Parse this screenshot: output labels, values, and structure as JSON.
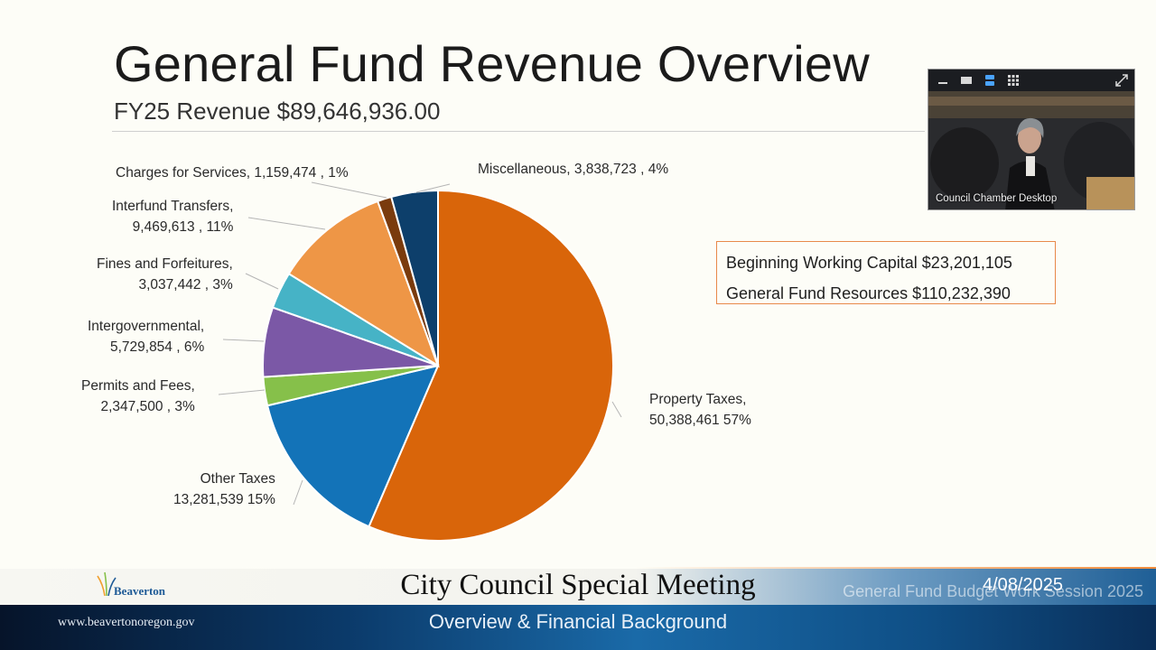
{
  "slide": {
    "title": "General Fund Revenue Overview",
    "subtitle": "FY25 Revenue $89,646,936.00",
    "info_box": {
      "line1": "Beginning Working Capital $23,201,105",
      "line2": "General Fund Resources $110,232,390"
    }
  },
  "chart_data": {
    "type": "pie",
    "slices": [
      {
        "category": "Property Taxes,",
        "value": 50388461,
        "value_label": "50,388,461",
        "percent_label": "57%",
        "color": "#d9650a"
      },
      {
        "category": "Other Taxes",
        "value": 13281539,
        "value_label": "13,281,539",
        "percent_label": "15%",
        "color": "#1373b8"
      },
      {
        "category": "Permits and Fees,",
        "value": 2347500,
        "value_label": "2,347,500",
        "percent_label": "3%",
        "color": "#86c04a"
      },
      {
        "category": "Intergovernmental,",
        "value": 5729854,
        "value_label": "5,729,854",
        "percent_label": "6%",
        "color": "#7b58a6"
      },
      {
        "category": "Fines and Forfeitures,",
        "value": 3037442,
        "value_label": "3,037,442",
        "percent_label": "3%",
        "color": "#46b3c6"
      },
      {
        "category": "Interfund Transfers,",
        "value": 9469613,
        "value_label": "9,469,613",
        "percent_label": "11%",
        "color": "#ee9646"
      },
      {
        "category": "Charges for Services,",
        "value": 1159474,
        "value_label": "1,159,474",
        "percent_label": "1%",
        "color": "#7a3b0d"
      },
      {
        "category": "Miscellaneous,",
        "value": 3838723,
        "value_label": "3,838,723",
        "percent_label": "4%",
        "color": "#0d3f6b"
      }
    ],
    "start_angle_deg": 0,
    "direction": "clockwise",
    "legend": "none"
  },
  "video": {
    "label": "Council Chamber Desktop",
    "toolbar_icons": [
      "minimize-icon",
      "window-icon",
      "speaker-view-icon",
      "grid-view-icon"
    ],
    "expand_icon": "expand-icon"
  },
  "footer": {
    "logo_text": "Beaverton",
    "meeting_title": "City Council Special Meeting",
    "meeting_date": "4/08/2025",
    "ghost_title": "General Fund Budget Work Session 2025",
    "website": "www.beavertonoregon.gov",
    "meeting_subtitle": "Overview & Financial Background"
  }
}
